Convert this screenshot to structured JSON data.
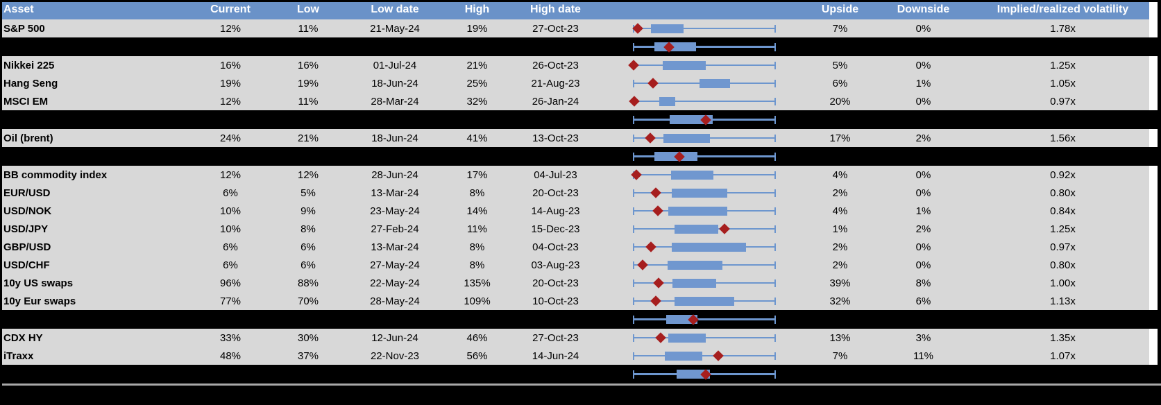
{
  "chart_data": {
    "type": "table",
    "description": "Asset volatility table: 1-year implied volatility range shown as horizontal box plot (whisker = low-high range, box = interquartile range, red diamond = current level)",
    "columns": {
      "asset": "Asset",
      "current": "Current",
      "low": "Low",
      "low_date": "Low date",
      "high": "High",
      "high_date": "High date",
      "upside": "Upside",
      "downside": "Downside",
      "impl": "Implied/realized volatility"
    },
    "colors": {
      "header_bg": "#6A92C8",
      "row_bg": "#D8D8D8",
      "black_band": "#000000",
      "whisker": "#6D96CE",
      "box": "#7097CF",
      "diamond": "#A61E1E",
      "separator_line": "#A8A8A8",
      "header_text": "#FFFFFF"
    },
    "boxplot_note": "box_low_pct/box_high_pct/marker_pct are positions in % of the whisker span (0 = left cap, 100 = right cap)",
    "rows": [
      {
        "kind": "data",
        "asset": "S&P 500",
        "current": "12%",
        "low": "11%",
        "low_date": "21-May-24",
        "high": "19%",
        "high_date": "27-Oct-23",
        "upside": "7%",
        "downside": "0%",
        "impl": "1.78x",
        "box": {
          "l": 12.6,
          "r": 35.4,
          "d": 3.4
        }
      },
      {
        "kind": "black",
        "box": {
          "l": 15.0,
          "r": 44.2,
          "d": 25.2
        }
      },
      {
        "kind": "data",
        "asset": "Nikkei 225",
        "current": "16%",
        "low": "16%",
        "low_date": "01-Jul-24",
        "high": "21%",
        "high_date": "26-Oct-23",
        "upside": "5%",
        "downside": "0%",
        "impl": "1.25x",
        "box": {
          "l": 20.9,
          "r": 51.0,
          "d": 0.5
        }
      },
      {
        "kind": "data",
        "asset": "Hang Seng",
        "current": "19%",
        "low": "19%",
        "low_date": "18-Jun-24",
        "high": "25%",
        "high_date": "21-Aug-23",
        "upside": "6%",
        "downside": "1%",
        "impl": "1.05x",
        "box": {
          "l": 46.6,
          "r": 68.0,
          "d": 14.1
        }
      },
      {
        "kind": "data",
        "asset": "MSCI EM",
        "current": "12%",
        "low": "11%",
        "low_date": "28-Mar-24",
        "high": "32%",
        "high_date": "26-Jan-24",
        "upside": "20%",
        "downside": "0%",
        "impl": "0.97x",
        "box": {
          "l": 18.4,
          "r": 29.6,
          "d": 1.0
        }
      },
      {
        "kind": "black",
        "box": {
          "l": 25.7,
          "r": 55.8,
          "d": 51.0
        }
      },
      {
        "kind": "data",
        "asset": "Oil (brent)",
        "current": "24%",
        "low": "21%",
        "low_date": "18-Jun-24",
        "high": "41%",
        "high_date": "13-Oct-23",
        "upside": "17%",
        "downside": "2%",
        "impl": "1.56x",
        "box": {
          "l": 21.4,
          "r": 53.9,
          "d": 12.1
        }
      },
      {
        "kind": "black",
        "box": {
          "l": 15.0,
          "r": 45.1,
          "d": 32.5
        }
      },
      {
        "kind": "data",
        "asset": "BB commodity index",
        "current": "12%",
        "low": "12%",
        "low_date": "28-Jun-24",
        "high": "17%",
        "high_date": "04-Jul-23",
        "upside": "4%",
        "downside": "0%",
        "impl": "0.92x",
        "box": {
          "l": 26.7,
          "r": 56.3,
          "d": 2.4
        }
      },
      {
        "kind": "data",
        "asset": "EUR/USD",
        "current": "6%",
        "low": "5%",
        "low_date": "13-Mar-24",
        "high": "8%",
        "high_date": "20-Oct-23",
        "upside": "2%",
        "downside": "0%",
        "impl": "0.80x",
        "box": {
          "l": 27.2,
          "r": 66.0,
          "d": 16.0
        }
      },
      {
        "kind": "data",
        "asset": "USD/NOK",
        "current": "10%",
        "low": "9%",
        "low_date": "23-May-24",
        "high": "14%",
        "high_date": "14-Aug-23",
        "upside": "4%",
        "downside": "1%",
        "impl": "0.84x",
        "box": {
          "l": 24.8,
          "r": 66.0,
          "d": 17.5
        }
      },
      {
        "kind": "data",
        "asset": "USD/JPY",
        "current": "10%",
        "low": "8%",
        "low_date": "27-Feb-24",
        "high": "11%",
        "high_date": "15-Dec-23",
        "upside": "1%",
        "downside": "2%",
        "impl": "1.25x",
        "box": {
          "l": 29.1,
          "r": 59.7,
          "d": 64.1
        }
      },
      {
        "kind": "data",
        "asset": "GBP/USD",
        "current": "6%",
        "low": "6%",
        "low_date": "13-Mar-24",
        "high": "8%",
        "high_date": "04-Oct-23",
        "upside": "2%",
        "downside": "0%",
        "impl": "0.97x",
        "box": {
          "l": 27.2,
          "r": 79.1,
          "d": 12.6
        }
      },
      {
        "kind": "data",
        "asset": "USD/CHF",
        "current": "6%",
        "low": "6%",
        "low_date": "27-May-24",
        "high": "8%",
        "high_date": "03-Aug-23",
        "upside": "2%",
        "downside": "0%",
        "impl": "0.80x",
        "box": {
          "l": 24.3,
          "r": 62.6,
          "d": 6.8
        }
      },
      {
        "kind": "data",
        "asset": "10y US swaps",
        "current": "96%",
        "low": "88%",
        "low_date": "22-May-24",
        "high": "135%",
        "high_date": "20-Oct-23",
        "upside": "39%",
        "downside": "8%",
        "impl": "1.00x",
        "box": {
          "l": 27.7,
          "r": 58.3,
          "d": 18.0
        }
      },
      {
        "kind": "data",
        "asset": "10y Eur swaps",
        "current": "77%",
        "low": "70%",
        "low_date": "28-May-24",
        "high": "109%",
        "high_date": "10-Oct-23",
        "upside": "32%",
        "downside": "6%",
        "impl": "1.13x",
        "box": {
          "l": 29.1,
          "r": 70.9,
          "d": 16.0
        }
      },
      {
        "kind": "black",
        "box": {
          "l": 23.3,
          "r": 45.1,
          "d": 42.2
        }
      },
      {
        "kind": "data",
        "asset": "CDX HY",
        "current": "33%",
        "low": "30%",
        "low_date": "12-Jun-24",
        "high": "46%",
        "high_date": "27-Oct-23",
        "upside": "13%",
        "downside": "3%",
        "impl": "1.35x",
        "box": {
          "l": 24.8,
          "r": 51.0,
          "d": 19.4
        }
      },
      {
        "kind": "data",
        "asset": "iTraxx",
        "current": "48%",
        "low": "37%",
        "low_date": "22-Nov-23",
        "high": "56%",
        "high_date": "14-Jun-24",
        "upside": "7%",
        "downside": "11%",
        "impl": "1.07x",
        "box": {
          "l": 22.3,
          "r": 48.5,
          "d": 59.7
        }
      },
      {
        "kind": "black",
        "box": {
          "l": 30.6,
          "r": 53.9,
          "d": 51.0
        }
      }
    ]
  }
}
